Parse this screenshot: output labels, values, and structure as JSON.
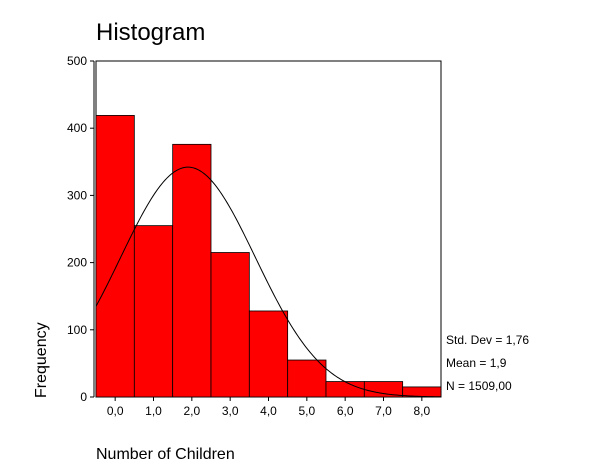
{
  "chart_data": {
    "type": "bar",
    "title": "Histogram",
    "xlabel": "Number of Children",
    "ylabel": "Frequency",
    "ylim": [
      0,
      500
    ],
    "yticks": [
      "0",
      "100",
      "200",
      "300",
      "400",
      "500"
    ],
    "categories": [
      "0,0",
      "1,0",
      "2,0",
      "3,0",
      "4,0",
      "5,0",
      "6,0",
      "7,0",
      "8,0"
    ],
    "values": [
      419,
      255,
      376,
      215,
      128,
      55,
      23,
      23,
      15
    ],
    "colors": {
      "bar": "#ff0000",
      "curve": "#000000"
    },
    "normal_curve": {
      "mean": 1.9,
      "std_dev": 1.76,
      "n": 1509
    },
    "grid": false,
    "stats": {
      "std_dev": "Std. Dev = 1,76",
      "mean": "Mean = 1,9",
      "n": "N = 1509,00"
    }
  }
}
